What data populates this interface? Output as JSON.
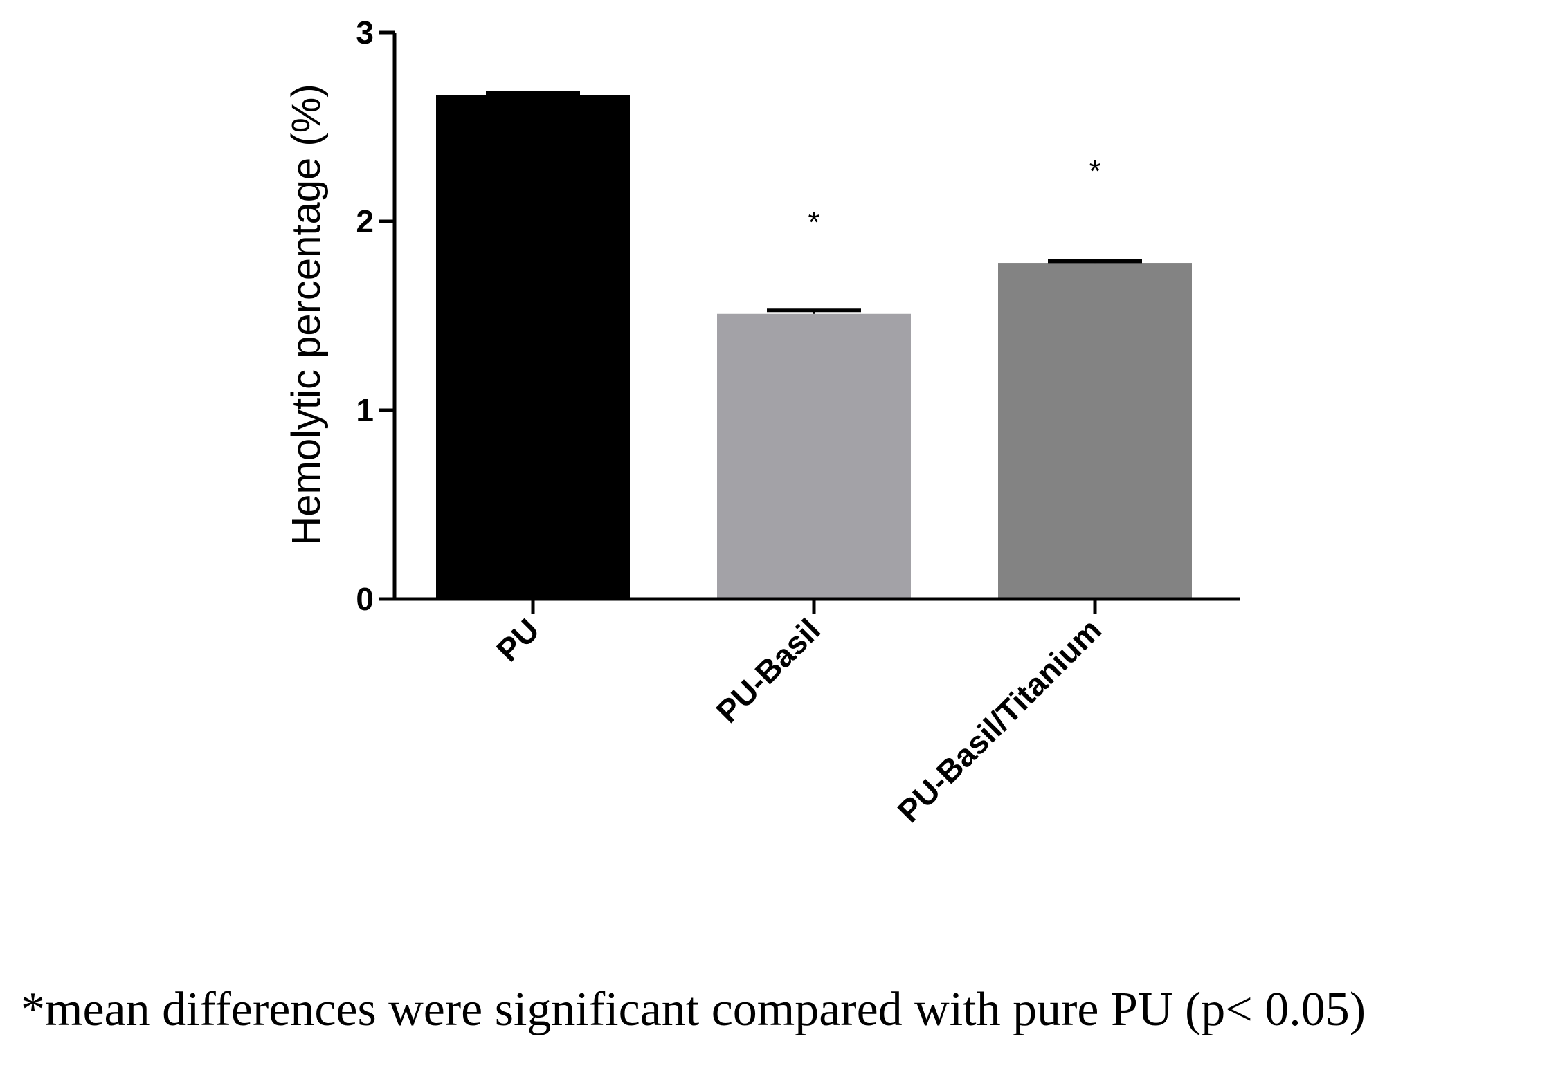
{
  "chart_data": {
    "type": "bar",
    "categories": [
      "PU",
      "PU-Basil",
      "PU-Basil/Titanium"
    ],
    "values": [
      2.67,
      1.51,
      1.78
    ],
    "errors": [
      0.01,
      0.02,
      0.01
    ],
    "colors": [
      "#000000",
      "#a3a2a7",
      "#838383"
    ],
    "significance": [
      "",
      "*",
      "*"
    ],
    "ylabel": "Hemolytic percentage (%)",
    "xlabel": "",
    "ylim": [
      0,
      3
    ],
    "yticks": [
      "0",
      "1",
      "2",
      "3"
    ],
    "grid": false
  },
  "footnote": "*mean differences were significant compared with pure PU (p< 0.05)"
}
